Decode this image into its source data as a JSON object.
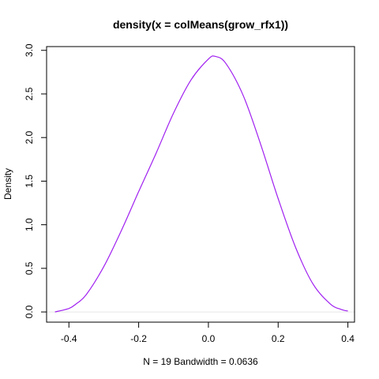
{
  "chart_data": {
    "type": "line",
    "title": "density(x = colMeans(grow_rfx1))",
    "xlabel": "N = 19   Bandwidth = 0.0636",
    "ylabel": "Density",
    "xlim": [
      -0.464,
      0.419
    ],
    "ylim": [
      -0.117,
      3.043
    ],
    "xticks": [
      -0.4,
      -0.2,
      0.0,
      0.2,
      0.4
    ],
    "xtick_labels": [
      "-0.4",
      "-0.2",
      "0.0",
      "0.2",
      "0.4"
    ],
    "yticks": [
      0.0,
      0.5,
      1.0,
      1.5,
      2.0,
      2.5,
      3.0
    ],
    "ytick_labels": [
      "0.0",
      "0.5",
      "1.0",
      "1.5",
      "2.0",
      "2.5",
      "3.0"
    ],
    "baseline": 0,
    "baseline_color": "#e6e6e6",
    "grid": false,
    "line_color": "#a020f0",
    "series": [
      {
        "x": [
          -0.44,
          -0.4,
          -0.38,
          -0.35,
          -0.3,
          -0.25,
          -0.2,
          -0.15,
          -0.1,
          -0.05,
          0.0,
          0.02,
          0.05,
          0.1,
          0.15,
          0.2,
          0.25,
          0.3,
          0.35,
          0.38,
          0.4
        ],
        "y": [
          0.0,
          0.04,
          0.09,
          0.2,
          0.52,
          0.93,
          1.38,
          1.82,
          2.28,
          2.66,
          2.9,
          2.93,
          2.85,
          2.48,
          1.92,
          1.3,
          0.74,
          0.32,
          0.09,
          0.03,
          0.01
        ]
      }
    ]
  }
}
